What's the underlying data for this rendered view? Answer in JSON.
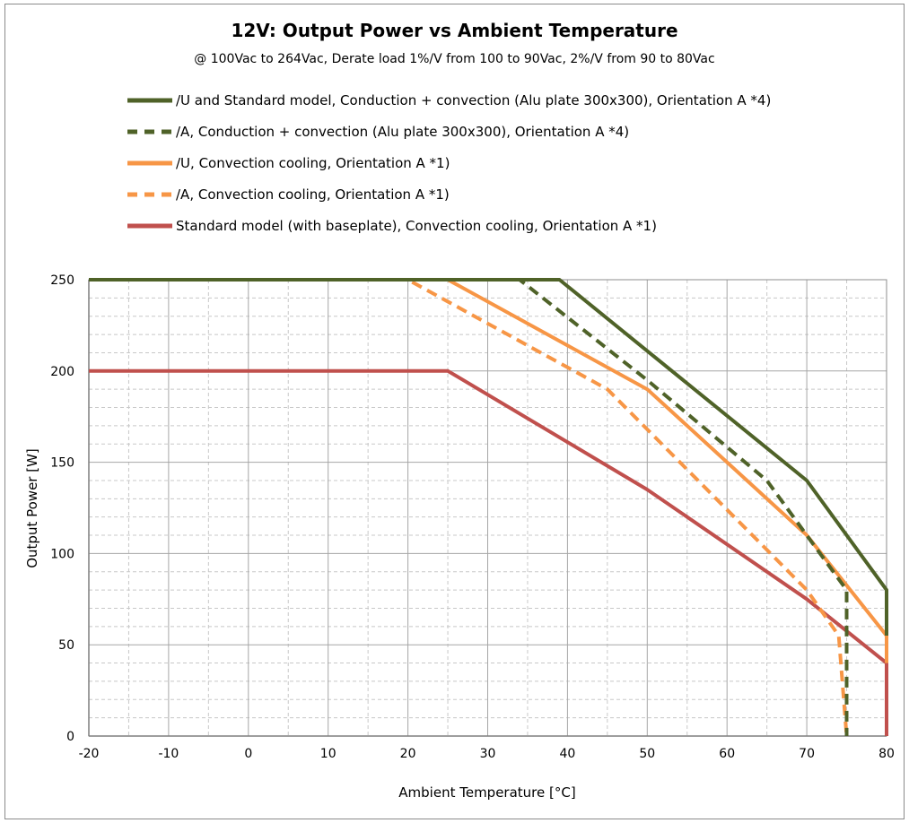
{
  "chart_data": {
    "type": "line",
    "title": "12V: Output Power vs Ambient Temperature",
    "subtitle": "@ 100Vac to 264Vac, Derate load 1%/V from 100 to 90Vac, 2%/V from 90 to 80Vac",
    "xlabel": "Ambient Temperature [°C]",
    "ylabel": "Output Power [W]",
    "xlim": [
      -20,
      80
    ],
    "ylim": [
      0,
      250
    ],
    "x_ticks": [
      -20,
      -10,
      0,
      10,
      20,
      30,
      40,
      50,
      60,
      70,
      80
    ],
    "y_ticks": [
      0,
      50,
      100,
      150,
      200,
      250
    ],
    "grid": "on",
    "legend_position": "top-left",
    "series": [
      {
        "name": "/U and Standard model, Conduction + convection (Alu plate 300x300), Orientation A *4)",
        "color": "#4f6228",
        "dash": "solid",
        "points": [
          [
            -20,
            250
          ],
          [
            39,
            250
          ],
          [
            70,
            140
          ],
          [
            80,
            80
          ],
          [
            80,
            55
          ]
        ]
      },
      {
        "name": "/A, Conduction + convection (Alu plate 300x300), Orientation A *4)",
        "color": "#4f6228",
        "dash": "dashed",
        "points": [
          [
            -20,
            250
          ],
          [
            34,
            250
          ],
          [
            50,
            195
          ],
          [
            65,
            140
          ],
          [
            75,
            80
          ],
          [
            75,
            0
          ]
        ]
      },
      {
        "name": "/U, Convection cooling, Orientation A *1)",
        "color": "#f79646",
        "dash": "solid",
        "points": [
          [
            -20,
            250
          ],
          [
            25,
            250
          ],
          [
            50,
            190
          ],
          [
            70,
            110
          ],
          [
            80,
            55
          ],
          [
            80,
            40
          ]
        ]
      },
      {
        "name": "/A, Convection cooling, Orientation A *1)",
        "color": "#f79646",
        "dash": "dashed",
        "points": [
          [
            -20,
            250
          ],
          [
            20,
            250
          ],
          [
            45,
            190
          ],
          [
            70,
            80
          ],
          [
            74,
            55
          ],
          [
            75,
            0
          ]
        ]
      },
      {
        "name": "Standard model (with baseplate), Convection cooling, Orientation A *1)",
        "color": "#c0504d",
        "dash": "solid",
        "points": [
          [
            -20,
            200
          ],
          [
            25,
            200
          ],
          [
            50,
            135
          ],
          [
            70,
            75
          ],
          [
            80,
            40
          ],
          [
            80,
            0
          ]
        ]
      }
    ]
  }
}
